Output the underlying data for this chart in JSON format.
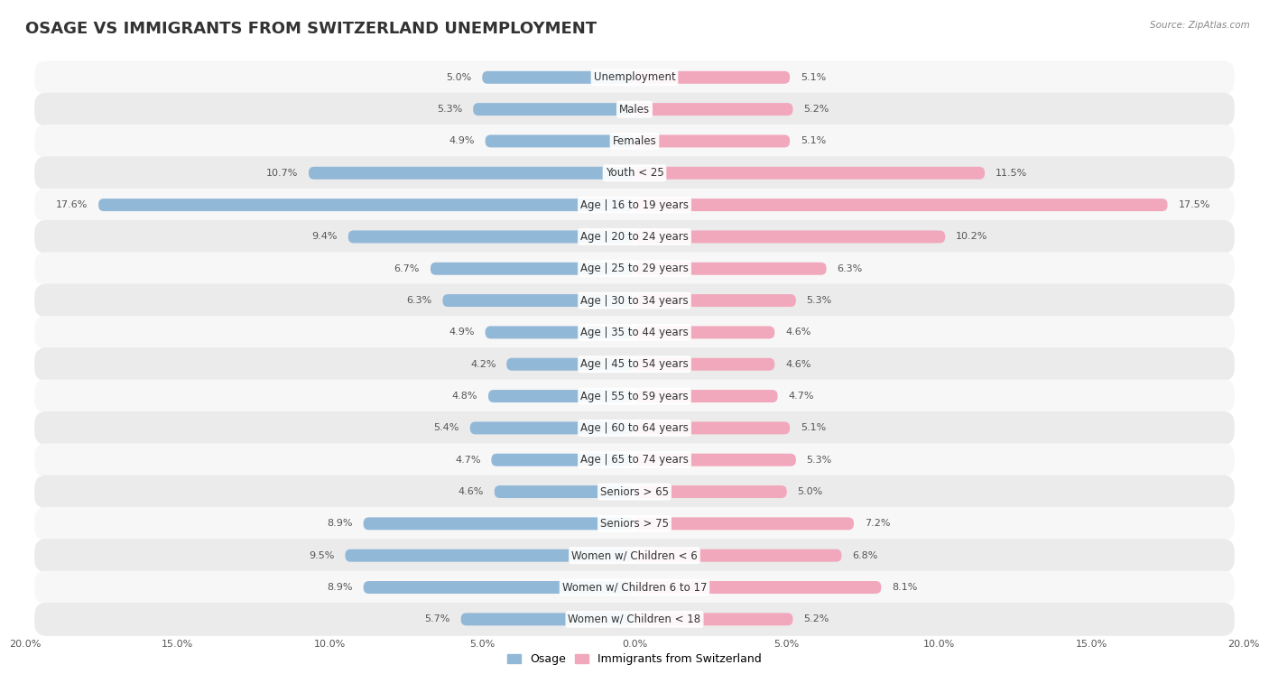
{
  "title": "OSAGE VS IMMIGRANTS FROM SWITZERLAND UNEMPLOYMENT",
  "source": "Source: ZipAtlas.com",
  "categories": [
    "Unemployment",
    "Males",
    "Females",
    "Youth < 25",
    "Age | 16 to 19 years",
    "Age | 20 to 24 years",
    "Age | 25 to 29 years",
    "Age | 30 to 34 years",
    "Age | 35 to 44 years",
    "Age | 45 to 54 years",
    "Age | 55 to 59 years",
    "Age | 60 to 64 years",
    "Age | 65 to 74 years",
    "Seniors > 65",
    "Seniors > 75",
    "Women w/ Children < 6",
    "Women w/ Children 6 to 17",
    "Women w/ Children < 18"
  ],
  "osage_values": [
    5.0,
    5.3,
    4.9,
    10.7,
    17.6,
    9.4,
    6.7,
    6.3,
    4.9,
    4.2,
    4.8,
    5.4,
    4.7,
    4.6,
    8.9,
    9.5,
    8.9,
    5.7
  ],
  "swiss_values": [
    5.1,
    5.2,
    5.1,
    11.5,
    17.5,
    10.2,
    6.3,
    5.3,
    4.6,
    4.6,
    4.7,
    5.1,
    5.3,
    5.0,
    7.2,
    6.8,
    8.1,
    5.2
  ],
  "osage_color": "#92b8d8",
  "swiss_color": "#f2a8bc",
  "osage_label": "Osage",
  "swiss_label": "Immigrants from Switzerland",
  "background_color": "#ffffff",
  "row_light": "#f5f5f5",
  "row_dark": "#e8e8e8",
  "max_value": 20.0,
  "title_fontsize": 13,
  "label_fontsize": 8.5,
  "value_fontsize": 8.0,
  "tick_fontsize": 8.0
}
